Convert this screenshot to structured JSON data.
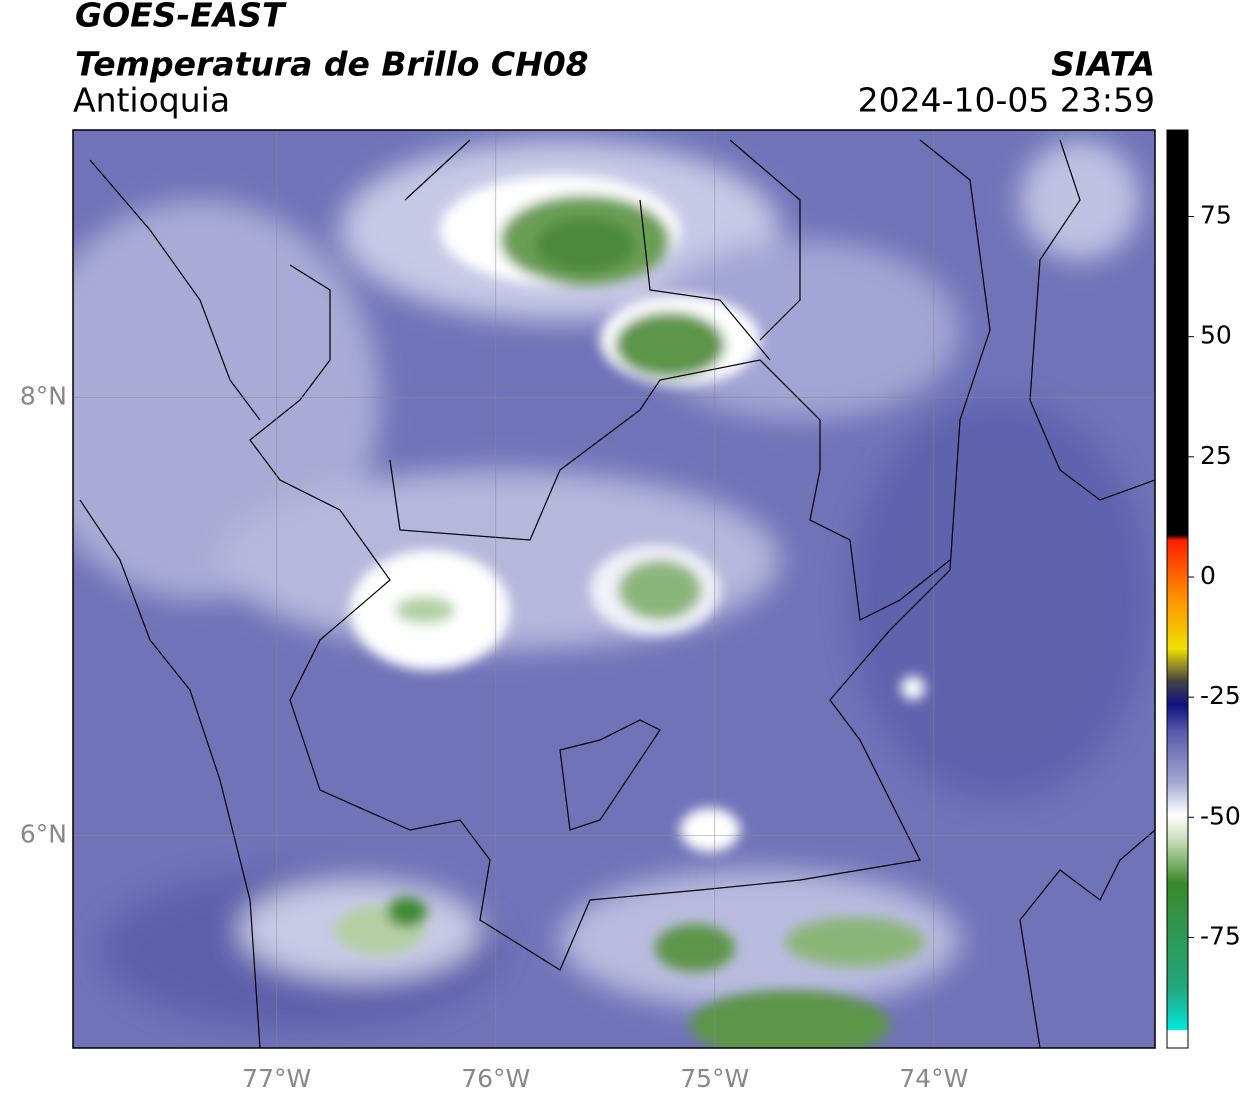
{
  "header": {
    "satellite": "GOES-EAST",
    "product": "Temperatura de Brillo CH08",
    "region": "Antioquia",
    "source": "SIATA",
    "datetime": "2024-10-05 23:59"
  },
  "map": {
    "xlim": [
      -77.93,
      -72.99
    ],
    "ylim": [
      5.03,
      9.22
    ],
    "xticks": [
      {
        "value": -77,
        "label": "77°W"
      },
      {
        "value": -76,
        "label": "76°W"
      },
      {
        "value": -75,
        "label": "75°W"
      },
      {
        "value": -74,
        "label": "74°W"
      }
    ],
    "yticks": [
      {
        "value": 6,
        "label": "6°N"
      },
      {
        "value": 8,
        "label": "8°N"
      }
    ],
    "grid": true
  },
  "colorbar": {
    "clim": [
      -98,
      93
    ],
    "ticks": [
      -75,
      -50,
      -25,
      0,
      25,
      50,
      75
    ]
  }
}
